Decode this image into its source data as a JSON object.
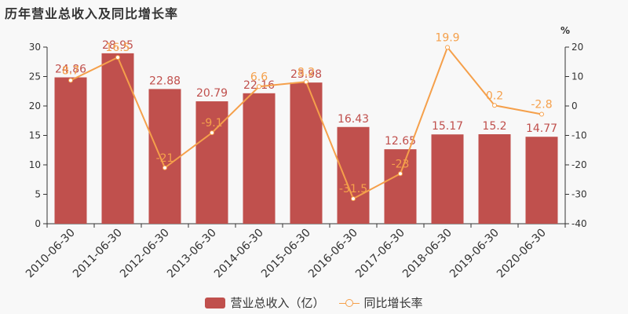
{
  "title": "历年营业总收入及同比增长率",
  "legend": {
    "bar_label": "营业总收入（亿）",
    "line_label": "同比增长率"
  },
  "right_axis_unit": "%",
  "colors": {
    "bar": "#c0504d",
    "line": "#f5a04b",
    "background": "#f8f8f8",
    "axis": "#333333"
  },
  "chart_data": {
    "type": "bar",
    "title": "历年营业总收入及同比增长率",
    "categories": [
      "2010-06-30",
      "2011-06-30",
      "2012-06-30",
      "2013-06-30",
      "2014-06-30",
      "2015-06-30",
      "2016-06-30",
      "2017-06-30",
      "2018-06-30",
      "2019-06-30",
      "2020-06-30"
    ],
    "series": [
      {
        "name": "营业总收入（亿）",
        "type": "bar",
        "axis": "left",
        "values": [
          24.86,
          28.95,
          22.88,
          20.79,
          22.16,
          23.98,
          16.43,
          12.65,
          15.17,
          15.2,
          14.77
        ]
      },
      {
        "name": "同比增长率",
        "type": "line",
        "axis": "right",
        "values": [
          8.7,
          16.5,
          -21,
          -9.1,
          6.6,
          8.2,
          -31.5,
          -23,
          19.9,
          0.2,
          -2.8
        ]
      }
    ],
    "y_left": {
      "min": 0,
      "max": 30,
      "ticks": [
        0,
        5,
        10,
        15,
        20,
        25,
        30
      ]
    },
    "y_right": {
      "min": -40,
      "max": 20,
      "ticks": [
        -40,
        -30,
        -20,
        -10,
        0,
        10,
        20
      ],
      "unit": "%"
    },
    "legend_position": "bottom",
    "grid": false
  }
}
